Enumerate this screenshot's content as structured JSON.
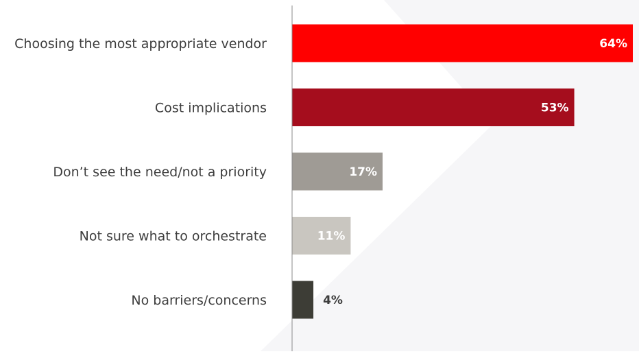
{
  "chart_data": {
    "type": "bar",
    "orientation": "horizontal",
    "categories": [
      "Choosing the most appropriate vendor",
      "Cost implications",
      "Don’t see the need/not a priority",
      "Not sure what to orchestrate",
      "No barriers/concerns"
    ],
    "values": [
      64,
      53,
      17,
      11,
      4
    ],
    "value_labels": [
      "64%",
      "53%",
      "17%",
      "11%",
      "4%"
    ],
    "bar_colors": [
      "#ff0000",
      "#a50d1d",
      "#9f9b95",
      "#c9c6c0",
      "#3d3d36"
    ],
    "value_label_colors": [
      "#ffffff",
      "#ffffff",
      "#ffffff",
      "#ffffff",
      "#3d3d3d"
    ],
    "value_label_inside": [
      true,
      true,
      true,
      true,
      false
    ],
    "xlim": [
      0,
      64
    ],
    "title": "",
    "xlabel": "",
    "ylabel": "",
    "grid": false,
    "legend": "none"
  },
  "colors": {
    "axis": "#8a8a8a",
    "category_text": "#3d3d3d",
    "watermark": "#f6f6f8"
  }
}
